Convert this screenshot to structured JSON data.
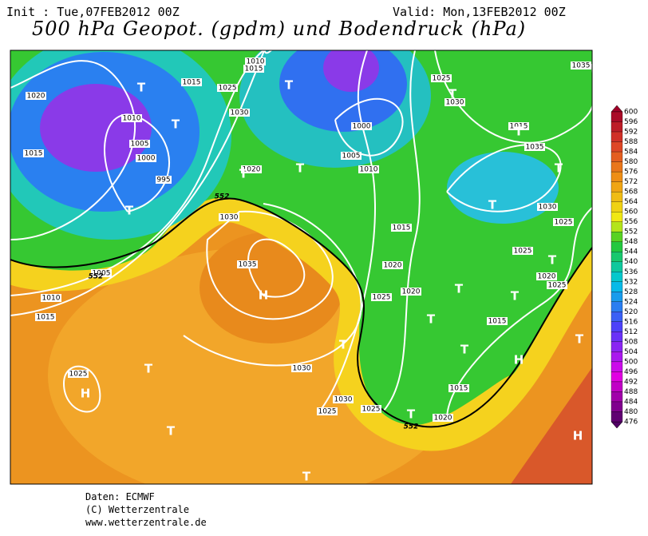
{
  "header": {
    "init": "Init : Tue,07FEB2012 00Z",
    "valid": "Valid: Mon,13FEB2012 00Z",
    "title": "500 hPa Geopot. (gpdm) und Bodendruck (hPa)"
  },
  "colorbar": {
    "levels": [
      600,
      596,
      592,
      588,
      584,
      580,
      576,
      572,
      568,
      564,
      560,
      556,
      552,
      548,
      544,
      540,
      536,
      532,
      528,
      524,
      520,
      516,
      512,
      508,
      504,
      500,
      496,
      492,
      488,
      484,
      480,
      476
    ]
  },
  "map": {
    "isobar_labels": [
      "1020",
      "1015",
      "1010",
      "1005",
      "1000",
      "995",
      "1015",
      "1025",
      "1030",
      "1020",
      "1030",
      "1035",
      "1005",
      "1010",
      "1015",
      "1025",
      "1030",
      "1030",
      "1025",
      "1025",
      "1020",
      "1015",
      "1015",
      "1020",
      "1025",
      "1020",
      "1015",
      "1010",
      "1005",
      "1000",
      "1025",
      "1030",
      "1015",
      "1035",
      "1030",
      "1025",
      "1025",
      "1020",
      "1025",
      "1035",
      "1015",
      "1010"
    ],
    "contour_labels": [
      "552",
      "552",
      "552"
    ],
    "highs": [
      "H",
      "H",
      "H",
      "H"
    ],
    "lows": [
      "T",
      "T",
      "T",
      "T",
      "T",
      "T",
      "T",
      "T",
      "T",
      "T",
      "T",
      "T",
      "T",
      "T",
      "T",
      "T",
      "T",
      "T",
      "T",
      "T",
      "T"
    ]
  },
  "footer": {
    "source": "Daten: ECMWF",
    "copyright": "(C) Wetterzentrale",
    "url": "www.wetterzentrale.de"
  }
}
